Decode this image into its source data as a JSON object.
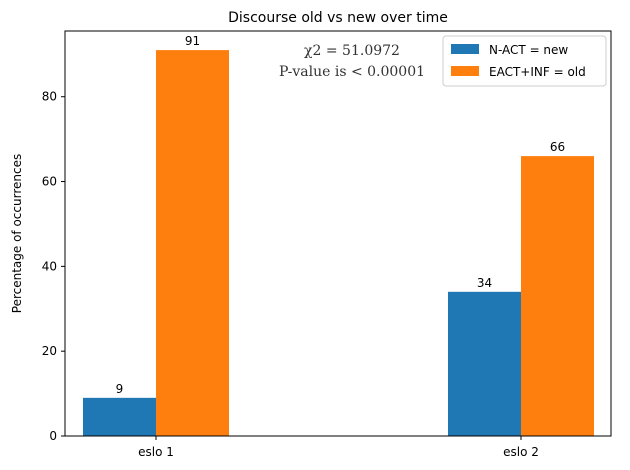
{
  "chart_data": {
    "type": "bar",
    "title": "Discourse old vs new over time",
    "xlabel": "",
    "ylabel": "Percentage of occurrences",
    "categories": [
      "eslo 1",
      "eslo 2"
    ],
    "series": [
      {
        "name": "N-ACT = new",
        "values": [
          9,
          34
        ],
        "color": "#1f77b4"
      },
      {
        "name": "EACT+INF = old",
        "values": [
          91,
          66
        ],
        "color": "#ff7f0e"
      }
    ],
    "ylim": [
      0,
      95.5
    ],
    "yticks": [
      0,
      20,
      40,
      60,
      80
    ],
    "grid": false,
    "legend_position": "top-right",
    "annotations": [
      "χ2 = 51.0972",
      "P-value is < 0.00001"
    ]
  }
}
